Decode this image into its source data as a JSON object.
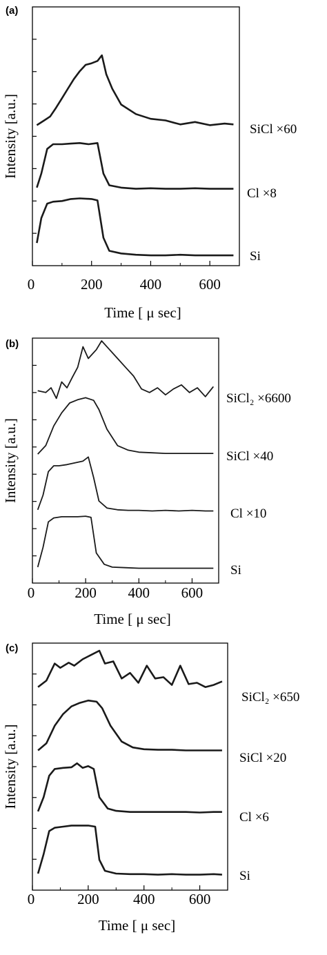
{
  "chart_data": [
    {
      "panel": "(a)",
      "type": "line",
      "ylabel": "Intensity [a.u.]",
      "xlabel": "Time [ μ sec]",
      "xlim": [
        0,
        700
      ],
      "x_ticks": [
        0,
        200,
        400,
        600
      ],
      "y_ticks_count": 7,
      "series": [
        {
          "name": "Si",
          "label": "Si",
          "x": [
            15,
            30,
            50,
            70,
            100,
            130,
            160,
            200,
            220,
            240,
            260,
            300,
            350,
            400,
            450,
            500,
            550,
            600,
            650,
            680
          ],
          "values": [
            0.22,
            0.6,
            0.82,
            0.85,
            0.86,
            0.89,
            0.9,
            0.89,
            0.87,
            0.3,
            0.1,
            0.06,
            0.04,
            0.03,
            0.03,
            0.04,
            0.03,
            0.03,
            0.03,
            0.03
          ]
        },
        {
          "name": "Cl",
          "label": "Cl  ×8",
          "x": [
            15,
            30,
            50,
            70,
            100,
            130,
            160,
            190,
            220,
            240,
            260,
            300,
            350,
            400,
            450,
            500,
            550,
            600,
            650,
            680
          ],
          "values": [
            0.06,
            0.3,
            0.72,
            0.8,
            0.8,
            0.81,
            0.82,
            0.8,
            0.82,
            0.3,
            0.1,
            0.06,
            0.04,
            0.05,
            0.04,
            0.04,
            0.05,
            0.04,
            0.04,
            0.04
          ]
        },
        {
          "name": "SiCl",
          "label": "SiCl  ×60",
          "x": [
            15,
            40,
            60,
            80,
            100,
            120,
            140,
            160,
            180,
            200,
            220,
            235,
            250,
            270,
            300,
            350,
            400,
            450,
            500,
            550,
            600,
            650,
            680
          ],
          "values": [
            0.04,
            0.1,
            0.15,
            0.26,
            0.38,
            0.5,
            0.62,
            0.72,
            0.8,
            0.82,
            0.85,
            0.92,
            0.68,
            0.5,
            0.3,
            0.18,
            0.12,
            0.1,
            0.05,
            0.08,
            0.04,
            0.06,
            0.05
          ]
        }
      ]
    },
    {
      "panel": "(b)",
      "type": "line",
      "ylabel": "Intensity [a.u.]",
      "xlabel": "Time [ μ sec]",
      "xlim": [
        0,
        700
      ],
      "x_ticks": [
        0,
        200,
        400,
        600
      ],
      "y_ticks_count": 8,
      "series": [
        {
          "name": "Si",
          "label": "Si",
          "x": [
            20,
            40,
            60,
            80,
            110,
            140,
            170,
            200,
            220,
            240,
            270,
            300,
            350,
            400,
            450,
            500,
            550,
            600,
            650,
            680
          ],
          "values": [
            0.05,
            0.4,
            0.85,
            0.92,
            0.94,
            0.94,
            0.94,
            0.95,
            0.93,
            0.3,
            0.1,
            0.05,
            0.04,
            0.03,
            0.03,
            0.03,
            0.03,
            0.03,
            0.03,
            0.03
          ]
        },
        {
          "name": "Cl",
          "label": "Cl  ×10",
          "x": [
            20,
            40,
            60,
            80,
            100,
            130,
            160,
            190,
            210,
            230,
            250,
            280,
            320,
            360,
            400,
            450,
            500,
            550,
            600,
            650,
            680
          ],
          "values": [
            0.05,
            0.3,
            0.7,
            0.8,
            0.8,
            0.82,
            0.85,
            0.88,
            0.95,
            0.6,
            0.2,
            0.08,
            0.05,
            0.04,
            0.04,
            0.03,
            0.04,
            0.03,
            0.04,
            0.03,
            0.03
          ]
        },
        {
          "name": "SiCl",
          "label": "SiCl  ×40",
          "x": [
            20,
            50,
            80,
            110,
            140,
            170,
            200,
            230,
            250,
            280,
            320,
            360,
            400,
            450,
            500,
            550,
            600,
            650,
            680
          ],
          "values": [
            0.02,
            0.15,
            0.45,
            0.65,
            0.8,
            0.85,
            0.88,
            0.84,
            0.7,
            0.4,
            0.15,
            0.08,
            0.05,
            0.04,
            0.03,
            0.03,
            0.03,
            0.03,
            0.03
          ]
        },
        {
          "name": "SiCl2",
          "label": "SiCl₂  ×6600",
          "x": [
            20,
            50,
            70,
            90,
            110,
            130,
            150,
            170,
            190,
            210,
            240,
            260,
            290,
            320,
            350,
            380,
            410,
            440,
            470,
            500,
            530,
            560,
            590,
            620,
            650,
            680
          ],
          "values": [
            0.15,
            0.12,
            0.2,
            0.02,
            0.3,
            0.2,
            0.38,
            0.55,
            0.9,
            0.7,
            0.85,
            1.0,
            0.85,
            0.7,
            0.55,
            0.4,
            0.18,
            0.12,
            0.2,
            0.08,
            0.18,
            0.25,
            0.12,
            0.2,
            0.05,
            0.22
          ]
        }
      ]
    },
    {
      "panel": "(c)",
      "type": "line",
      "ylabel": "Intensity [a.u.]",
      "xlabel": "Time [ μ sec]",
      "xlim": [
        0,
        700
      ],
      "x_ticks": [
        0,
        200,
        400,
        600
      ],
      "y_ticks_count": 7,
      "series": [
        {
          "name": "Si",
          "label": "Si",
          "x": [
            20,
            40,
            60,
            80,
            110,
            140,
            170,
            200,
            225,
            240,
            260,
            300,
            350,
            400,
            450,
            500,
            550,
            600,
            650,
            680
          ],
          "values": [
            0.05,
            0.4,
            0.82,
            0.88,
            0.9,
            0.92,
            0.92,
            0.92,
            0.9,
            0.3,
            0.1,
            0.05,
            0.04,
            0.04,
            0.03,
            0.04,
            0.03,
            0.03,
            0.04,
            0.03
          ]
        },
        {
          "name": "Cl",
          "label": "Cl  ×6",
          "x": [
            20,
            40,
            60,
            80,
            110,
            140,
            160,
            180,
            200,
            220,
            240,
            270,
            300,
            350,
            400,
            450,
            500,
            550,
            600,
            650,
            680
          ],
          "values": [
            0.05,
            0.3,
            0.68,
            0.8,
            0.82,
            0.83,
            0.9,
            0.82,
            0.85,
            0.8,
            0.3,
            0.1,
            0.06,
            0.04,
            0.04,
            0.04,
            0.04,
            0.04,
            0.03,
            0.04,
            0.04
          ]
        },
        {
          "name": "SiCl",
          "label": "SiCl  ×20",
          "x": [
            20,
            50,
            80,
            110,
            140,
            170,
            200,
            230,
            250,
            280,
            320,
            360,
            400,
            450,
            500,
            550,
            600,
            650,
            680
          ],
          "values": [
            0.03,
            0.15,
            0.45,
            0.65,
            0.78,
            0.84,
            0.88,
            0.86,
            0.75,
            0.45,
            0.18,
            0.08,
            0.05,
            0.04,
            0.04,
            0.03,
            0.03,
            0.03,
            0.03
          ]
        },
        {
          "name": "SiCl2",
          "label": "SiCl₂  ×650",
          "x": [
            20,
            50,
            80,
            100,
            130,
            150,
            180,
            210,
            240,
            260,
            290,
            320,
            350,
            380,
            410,
            440,
            470,
            500,
            530,
            560,
            590,
            620,
            650,
            680
          ],
          "values": [
            0.15,
            0.3,
            0.7,
            0.6,
            0.72,
            0.65,
            0.8,
            0.9,
            1.0,
            0.7,
            0.75,
            0.35,
            0.48,
            0.25,
            0.65,
            0.35,
            0.38,
            0.2,
            0.65,
            0.22,
            0.25,
            0.15,
            0.2,
            0.28
          ]
        }
      ]
    }
  ],
  "panels": [
    {
      "label": "(a)",
      "tick_labels": [
        "0",
        "200",
        "400",
        "600"
      ],
      "ylabel": "Intensity [a.u.]",
      "xlabel": "Time [ μ sec]"
    },
    {
      "label": "(b)",
      "tick_labels": [
        "0",
        "200",
        "400",
        "600"
      ],
      "ylabel": "Intensity [a.u.]",
      "xlabel": "Time [ μ sec]"
    },
    {
      "label": "(c)",
      "tick_labels": [
        "0",
        "200",
        "400",
        "600"
      ],
      "ylabel": "Intensity [a.u.]",
      "xlabel": "Time [ μ sec]"
    }
  ],
  "colors": {
    "line": "#1a1a1a",
    "axis": "#000000",
    "background": "#ffffff"
  }
}
